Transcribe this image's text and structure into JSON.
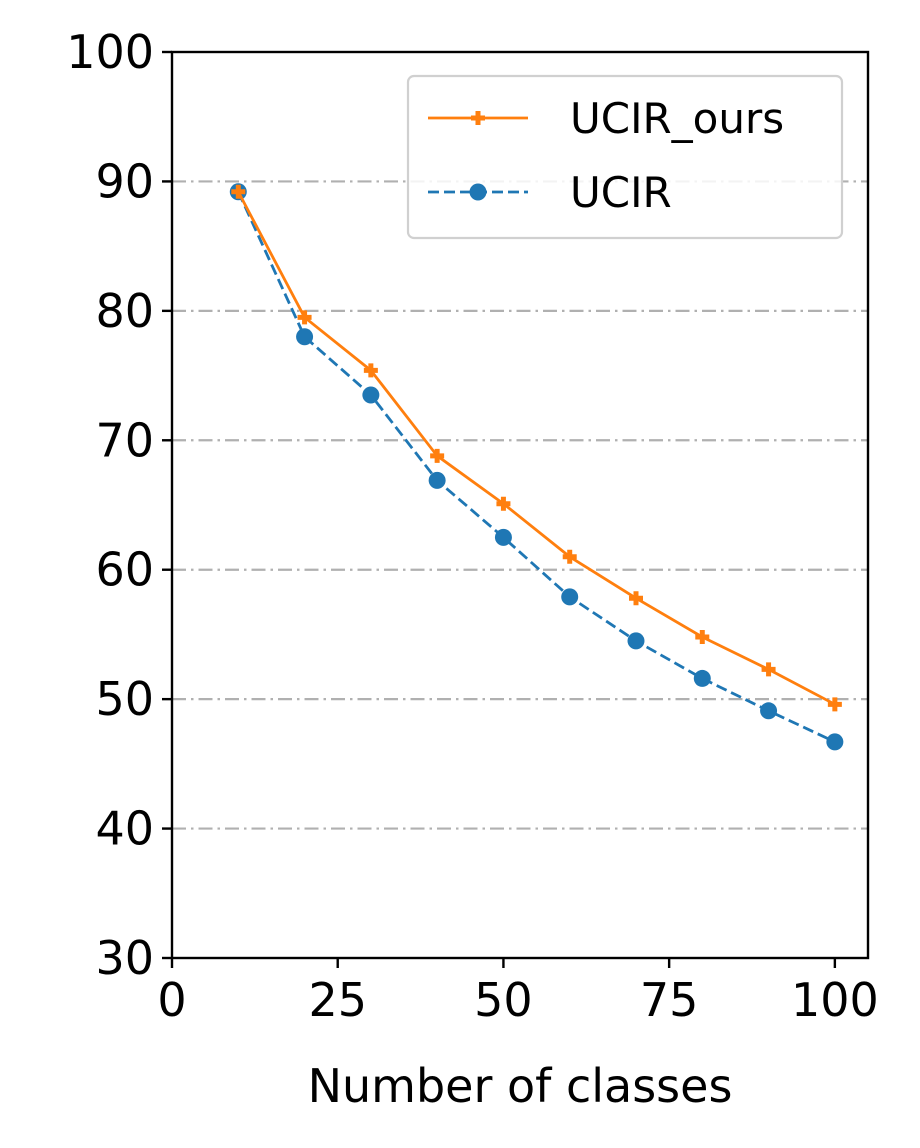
{
  "chart_data": {
    "type": "line",
    "title": "",
    "xlabel": "Number of classes",
    "ylabel": "",
    "xlim": [
      0,
      105
    ],
    "ylim": [
      30,
      100
    ],
    "xticks": [
      0,
      25,
      50,
      75,
      100
    ],
    "yticks": [
      30,
      40,
      50,
      60,
      70,
      80,
      90,
      100
    ],
    "x_tick_labels": [
      "0",
      "25",
      "50",
      "75",
      "100"
    ],
    "y_tick_labels": [
      "30",
      "40",
      "50",
      "60",
      "70",
      "80",
      "90",
      "100"
    ],
    "grid": "horizontal, dash-dot, gray",
    "legend_position": "top-right",
    "x": [
      10,
      20,
      30,
      40,
      50,
      60,
      70,
      80,
      90,
      100
    ],
    "series": [
      {
        "name": "UCIR_ours",
        "values": [
          89.2,
          79.5,
          75.4,
          68.8,
          65.1,
          61.0,
          57.8,
          54.8,
          52.3,
          49.6
        ],
        "color": "#ff7f0e",
        "line_style": "solid",
        "marker": "plus"
      },
      {
        "name": "UCIR",
        "values": [
          89.2,
          78.0,
          73.5,
          66.9,
          62.5,
          57.9,
          54.5,
          51.6,
          49.1,
          46.7
        ],
        "color": "#1f77b4",
        "line_style": "dashed",
        "marker": "circle"
      }
    ]
  }
}
